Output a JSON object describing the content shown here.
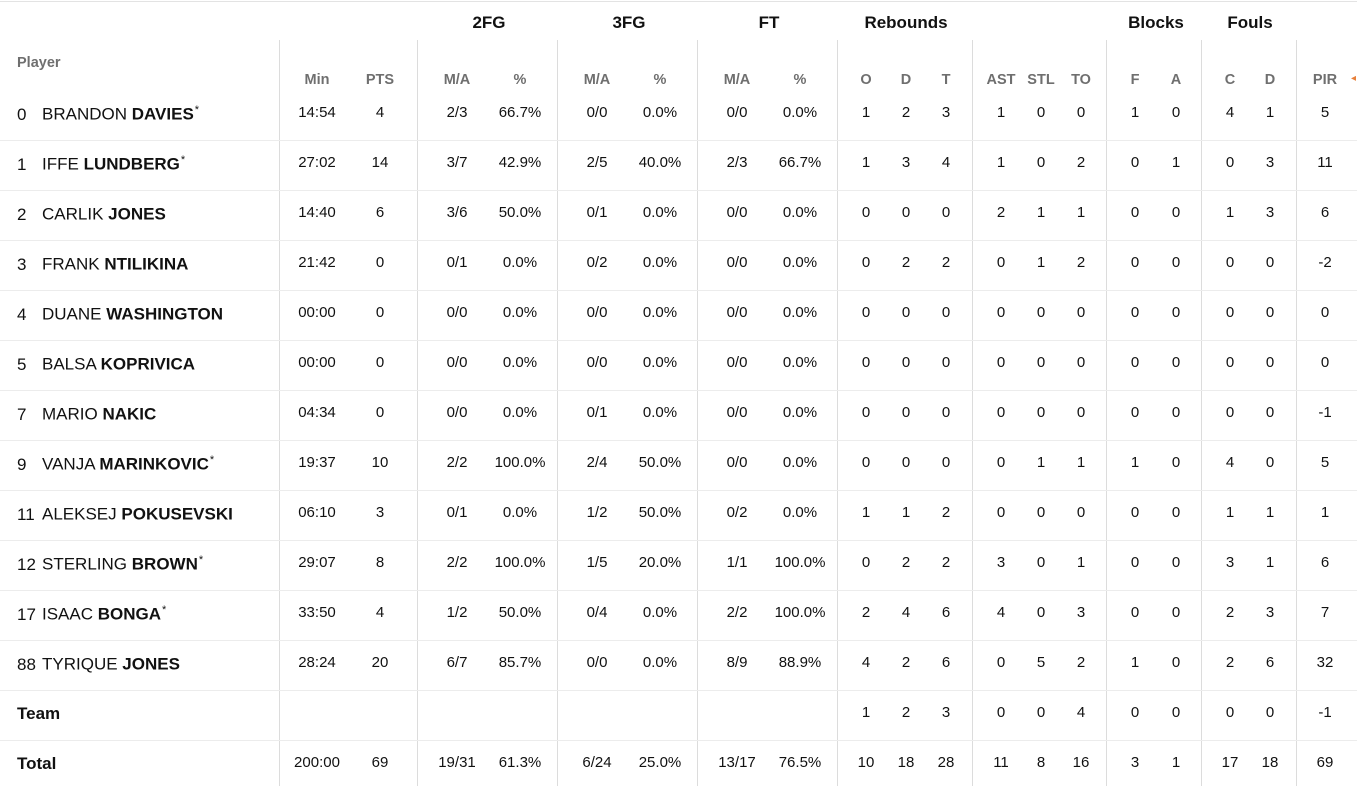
{
  "groups": [
    {
      "label": "2FG"
    },
    {
      "label": "3FG"
    },
    {
      "label": "FT"
    },
    {
      "label": "Rebounds"
    },
    {
      "label": "Blocks"
    },
    {
      "label": "Fouls"
    }
  ],
  "player_header": "Player",
  "columns": [
    "Min",
    "PTS",
    "M/A",
    "%",
    "M/A",
    "%",
    "M/A",
    "%",
    "O",
    "D",
    "T",
    "AST",
    "STL",
    "TO",
    "F",
    "A",
    "C",
    "D",
    "PIR"
  ],
  "players": [
    {
      "num": "0",
      "first": "BRANDON",
      "last": "DAVIES",
      "star": "*",
      "stats": [
        "14:54",
        "4",
        "2/3",
        "66.7%",
        "0/0",
        "0.0%",
        "0/0",
        "0.0%",
        "1",
        "2",
        "3",
        "1",
        "0",
        "0",
        "1",
        "0",
        "4",
        "1",
        "5"
      ]
    },
    {
      "num": "1",
      "first": "IFFE",
      "last": "LUNDBERG",
      "star": "*",
      "stats": [
        "27:02",
        "14",
        "3/7",
        "42.9%",
        "2/5",
        "40.0%",
        "2/3",
        "66.7%",
        "1",
        "3",
        "4",
        "1",
        "0",
        "2",
        "0",
        "1",
        "0",
        "3",
        "11"
      ]
    },
    {
      "num": "2",
      "first": "CARLIK",
      "last": "JONES",
      "star": "",
      "stats": [
        "14:40",
        "6",
        "3/6",
        "50.0%",
        "0/1",
        "0.0%",
        "0/0",
        "0.0%",
        "0",
        "0",
        "0",
        "2",
        "1",
        "1",
        "0",
        "0",
        "1",
        "3",
        "6"
      ]
    },
    {
      "num": "3",
      "first": "FRANK",
      "last": "NTILIKINA",
      "star": "",
      "stats": [
        "21:42",
        "0",
        "0/1",
        "0.0%",
        "0/2",
        "0.0%",
        "0/0",
        "0.0%",
        "0",
        "2",
        "2",
        "0",
        "1",
        "2",
        "0",
        "0",
        "0",
        "0",
        "-2"
      ]
    },
    {
      "num": "4",
      "first": "DUANE",
      "last": "WASHINGTON",
      "star": "",
      "stats": [
        "00:00",
        "0",
        "0/0",
        "0.0%",
        "0/0",
        "0.0%",
        "0/0",
        "0.0%",
        "0",
        "0",
        "0",
        "0",
        "0",
        "0",
        "0",
        "0",
        "0",
        "0",
        "0"
      ]
    },
    {
      "num": "5",
      "first": "BALSA",
      "last": "KOPRIVICA",
      "star": "",
      "stats": [
        "00:00",
        "0",
        "0/0",
        "0.0%",
        "0/0",
        "0.0%",
        "0/0",
        "0.0%",
        "0",
        "0",
        "0",
        "0",
        "0",
        "0",
        "0",
        "0",
        "0",
        "0",
        "0"
      ]
    },
    {
      "num": "7",
      "first": "MARIO",
      "last": "NAKIC",
      "star": "",
      "stats": [
        "04:34",
        "0",
        "0/0",
        "0.0%",
        "0/1",
        "0.0%",
        "0/0",
        "0.0%",
        "0",
        "0",
        "0",
        "0",
        "0",
        "0",
        "0",
        "0",
        "0",
        "0",
        "-1"
      ]
    },
    {
      "num": "9",
      "first": "VANJA",
      "last": "MARINKOVIC",
      "star": "*",
      "stats": [
        "19:37",
        "10",
        "2/2",
        "100.0%",
        "2/4",
        "50.0%",
        "0/0",
        "0.0%",
        "0",
        "0",
        "0",
        "0",
        "1",
        "1",
        "1",
        "0",
        "4",
        "0",
        "5"
      ]
    },
    {
      "num": "11",
      "first": "ALEKSEJ",
      "last": "POKUSEVSKI",
      "star": "",
      "stats": [
        "06:10",
        "3",
        "0/1",
        "0.0%",
        "1/2",
        "50.0%",
        "0/2",
        "0.0%",
        "1",
        "1",
        "2",
        "0",
        "0",
        "0",
        "0",
        "0",
        "1",
        "1",
        "1"
      ]
    },
    {
      "num": "12",
      "first": "STERLING",
      "last": "BROWN",
      "star": "*",
      "stats": [
        "29:07",
        "8",
        "2/2",
        "100.0%",
        "1/5",
        "20.0%",
        "1/1",
        "100.0%",
        "0",
        "2",
        "2",
        "3",
        "0",
        "1",
        "0",
        "0",
        "3",
        "1",
        "6"
      ]
    },
    {
      "num": "17",
      "first": "ISAAC",
      "last": "BONGA",
      "star": "*",
      "stats": [
        "33:50",
        "4",
        "1/2",
        "50.0%",
        "0/4",
        "0.0%",
        "2/2",
        "100.0%",
        "2",
        "4",
        "6",
        "4",
        "0",
        "3",
        "0",
        "0",
        "2",
        "3",
        "7"
      ]
    },
    {
      "num": "88",
      "first": "TYRIQUE",
      "last": "JONES",
      "star": "",
      "stats": [
        "28:24",
        "20",
        "6/7",
        "85.7%",
        "0/0",
        "0.0%",
        "8/9",
        "88.9%",
        "4",
        "2",
        "6",
        "0",
        "5",
        "2",
        "1",
        "0",
        "2",
        "6",
        "32"
      ]
    }
  ],
  "team_row": {
    "label": "Team",
    "stats": [
      "",
      "",
      "",
      "",
      "",
      "",
      "",
      "",
      "1",
      "2",
      "3",
      "0",
      "0",
      "4",
      "0",
      "0",
      "0",
      "0",
      "-1"
    ]
  },
  "total_row": {
    "label": "Total",
    "stats": [
      "200:00",
      "69",
      "19/31",
      "61.3%",
      "6/24",
      "25.0%",
      "13/17",
      "76.5%",
      "10",
      "18",
      "28",
      "11",
      "8",
      "16",
      "3",
      "1",
      "17",
      "18",
      "69"
    ]
  },
  "sort_indicator_color": "#e8803a"
}
